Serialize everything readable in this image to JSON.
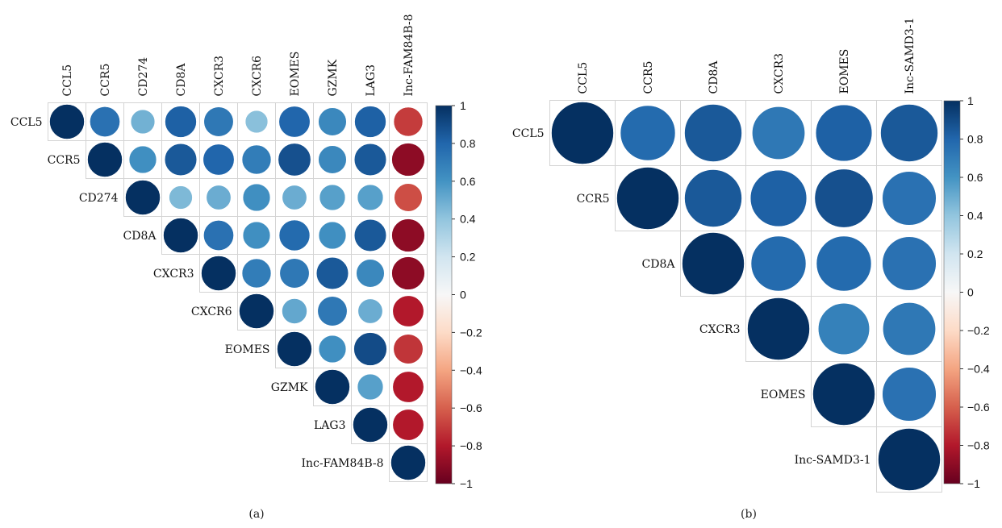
{
  "panels": [
    {
      "caption": "(a)",
      "variables": [
        "CCL5",
        "CCR5",
        "CD274",
        "CD8A",
        "CXCR3",
        "CXCR6",
        "EOMES",
        "GZMK",
        "LAG3",
        "Inc-FAM84B-8"
      ],
      "colorbar_ticks": [
        "1",
        "0.8",
        "0.6",
        "0.4",
        "0.2",
        "0",
        "−0.2",
        "−0.4",
        "−0.6",
        "−0.8",
        "−1"
      ]
    },
    {
      "caption": "(b)",
      "variables": [
        "CCL5",
        "CCR5",
        "CD8A",
        "CXCR3",
        "EOMES",
        "Inc-SAMD3-1"
      ],
      "colorbar_ticks": [
        "1",
        "0.8",
        "0.6",
        "0.4",
        "0.2",
        "0",
        "−0.2",
        "−0.4",
        "−0.6",
        "−0.8",
        "−1"
      ]
    }
  ],
  "chart_data": [
    {
      "type": "heatmap",
      "subtype": "correlation-circle-upper-triangle",
      "title": "",
      "caption": "(a)",
      "variables": [
        "CCL5",
        "CCR5",
        "CD274",
        "CD8A",
        "CXCR3",
        "CXCR6",
        "EOMES",
        "GZMK",
        "LAG3",
        "Inc-FAM84B-8"
      ],
      "matrix": [
        [
          1.0,
          0.75,
          0.48,
          0.82,
          0.72,
          0.42,
          0.8,
          0.65,
          0.82,
          -0.7
        ],
        [
          0.75,
          1.0,
          0.62,
          0.85,
          0.8,
          0.7,
          0.88,
          0.65,
          0.85,
          -0.9
        ],
        [
          0.48,
          0.62,
          1.0,
          0.45,
          0.5,
          0.62,
          0.5,
          0.55,
          0.55,
          -0.65
        ],
        [
          0.82,
          0.85,
          0.45,
          1.0,
          0.75,
          0.62,
          0.78,
          0.62,
          0.85,
          -0.9
        ],
        [
          0.72,
          0.8,
          0.5,
          0.75,
          1.0,
          0.7,
          0.72,
          0.85,
          0.65,
          -0.9
        ],
        [
          0.42,
          0.7,
          0.62,
          0.62,
          0.7,
          1.0,
          0.52,
          0.72,
          0.5,
          -0.8
        ],
        [
          0.8,
          0.88,
          0.5,
          0.78,
          0.72,
          0.52,
          1.0,
          0.62,
          0.9,
          -0.72
        ],
        [
          0.65,
          0.65,
          0.55,
          0.62,
          0.85,
          0.72,
          0.62,
          1.0,
          0.55,
          -0.8
        ],
        [
          0.82,
          0.85,
          0.55,
          0.85,
          0.65,
          0.5,
          0.9,
          0.55,
          1.0,
          -0.8
        ],
        [
          -0.7,
          -0.9,
          -0.65,
          -0.9,
          -0.9,
          -0.8,
          -0.72,
          -0.8,
          -0.8,
          1.0
        ]
      ],
      "color_scale": {
        "min": -1,
        "max": 1,
        "low": "#67001f",
        "mid": "#f7f7f7",
        "high": "#053061"
      },
      "grid": true,
      "legend": "right colorbar"
    },
    {
      "type": "heatmap",
      "subtype": "correlation-circle-upper-triangle",
      "title": "",
      "caption": "(b)",
      "variables": [
        "CCL5",
        "CCR5",
        "CD8A",
        "CXCR3",
        "EOMES",
        "Inc-SAMD3-1"
      ],
      "matrix": [
        [
          1.0,
          0.78,
          0.85,
          0.72,
          0.82,
          0.85
        ],
        [
          0.78,
          1.0,
          0.85,
          0.82,
          0.88,
          0.75
        ],
        [
          0.85,
          0.85,
          1.0,
          0.78,
          0.78,
          0.75
        ],
        [
          0.72,
          0.82,
          0.78,
          1.0,
          0.68,
          0.72
        ],
        [
          0.82,
          0.88,
          0.78,
          0.68,
          1.0,
          0.75
        ],
        [
          0.85,
          0.75,
          0.75,
          0.72,
          0.75,
          1.0
        ]
      ],
      "color_scale": {
        "min": -1,
        "max": 1,
        "low": "#67001f",
        "mid": "#f7f7f7",
        "high": "#053061"
      },
      "grid": true,
      "legend": "right colorbar"
    }
  ]
}
